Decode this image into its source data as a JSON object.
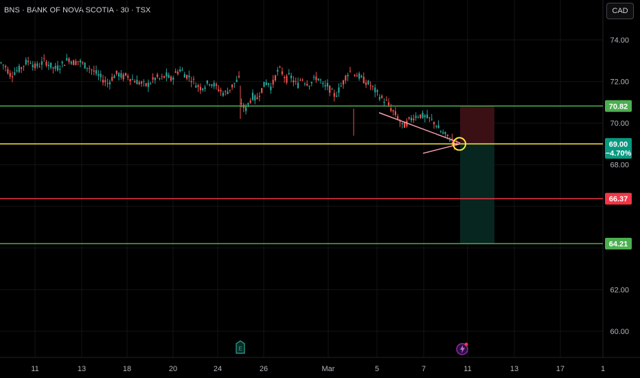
{
  "header": {
    "title": "BNS · BANK OF NOVA SCOTIA · 30 · TSX",
    "currency": "CAD"
  },
  "colors": {
    "background": "#000000",
    "grid": "#141414",
    "up": "#26a69a",
    "down": "#ef5350",
    "resistance_line": "#4caf50",
    "current_line": "#ffeb3b",
    "stop_line": "#f23645",
    "target_line": "#4caf50",
    "triangle": "#f7a1b0",
    "stop_zone": "#3a1014",
    "target_zone": "#072620"
  },
  "chart_data": {
    "type": "candlestick",
    "title": "BNS · BANK OF NOVA SCOTIA · 30 · TSX",
    "ylim": [
      59.5,
      75.5
    ],
    "y_ticks": [
      "60.00",
      "62.00",
      "68.00",
      "70.00",
      "72.00",
      "74.00"
    ],
    "x_ticks": [
      "11",
      "13",
      "18",
      "20",
      "24",
      "26",
      "Mar",
      "5",
      "7",
      "11",
      "13",
      "17",
      "1"
    ],
    "price_path": [
      [
        72.9,
        72.7,
        72.3,
        72.5,
        72.6,
        72.9,
        73.0,
        72.7,
        72.8,
        73.0
      ],
      [
        72.8,
        72.6,
        72.7,
        72.9,
        73.1,
        72.9,
        73.0,
        72.8,
        72.7,
        72.5
      ],
      [
        72.3,
        72.1,
        71.9,
        72.2,
        72.4,
        72.2,
        72.3,
        72.1,
        72.0,
        71.9
      ],
      [
        71.8,
        72.0,
        72.2,
        72.1,
        72.3,
        72.1,
        72.4,
        72.6,
        72.3,
        72.2
      ],
      [
        71.9,
        71.7,
        71.8,
        72.0,
        71.8,
        71.6,
        71.4,
        71.6,
        71.9,
        72.1
      ],
      [
        71.0,
        70.6,
        71.0,
        71.3,
        71.1,
        71.5,
        71.8,
        72.0,
        71.7,
        72.2
      ],
      [
        72.6,
        72.4,
        72.1,
        72.3,
        72.0,
        71.8,
        72.2,
        72.0,
        71.9,
        72.0
      ],
      [
        72.2,
        72.1,
        71.7,
        71.8,
        71.5,
        71.3,
        71.6,
        71.9,
        72.3,
        72.5
      ],
      [
        72.4,
        72.2,
        72.0,
        71.8,
        71.5,
        71.2,
        71.0,
        70.6,
        70.3,
        69.8
      ],
      [
        70.1,
        70.3,
        70.4,
        70.3,
        70.2,
        70.0,
        69.6,
        69.4,
        69.2,
        69.0
      ]
    ],
    "levels": [
      {
        "value": 70.82,
        "label": "70.82",
        "kind": "resistance"
      },
      {
        "value": 69.0,
        "label": "69.00",
        "sublabel": "−4.70%",
        "kind": "last-price"
      },
      {
        "value": 66.37,
        "label": "66.37",
        "kind": "stop"
      },
      {
        "value": 64.21,
        "label": "64.21",
        "kind": "target"
      }
    ],
    "annotations": [
      "symmetrical triangle",
      "breakout circle",
      "short position box"
    ],
    "grid": true,
    "last_price": 69.0,
    "change_percent": "−4.70%"
  },
  "footer_icons": [
    "earnings-icon",
    "dividend-lightning-icon"
  ],
  "earnings_marker": "E"
}
